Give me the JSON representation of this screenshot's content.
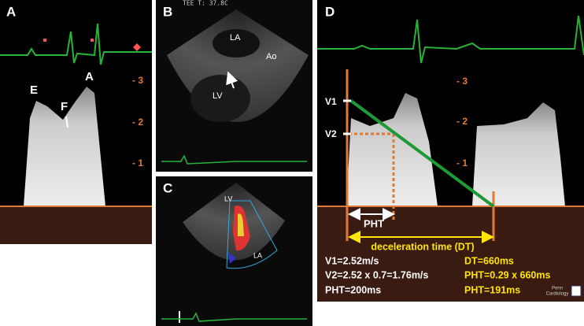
{
  "panel_a": {
    "label": "A",
    "waves": [
      "E",
      "F",
      "A"
    ],
    "scale": [
      "- 3",
      "- 2",
      "- 1"
    ]
  },
  "panel_b": {
    "label": "B",
    "header": "TEE T: 37.8C",
    "structures": [
      "LA",
      "Ao",
      "LV"
    ]
  },
  "panel_c": {
    "label": "C",
    "structures": [
      "LV",
      "LA"
    ]
  },
  "panel_d": {
    "label": "D",
    "velocities": [
      "V1",
      "V2"
    ],
    "scale": [
      "- 3",
      "- 2",
      "- 1"
    ],
    "pht_label": "PHT",
    "dt_label": "deceleration time (DT)",
    "calc_left": [
      "V1=2.52m/s",
      "V2=2.52 x 0.7=1.76m/s",
      "PHT=200ms"
    ],
    "calc_right": [
      "DT=660ms",
      "PHT=0.29 x 660ms",
      "PHT=191ms"
    ],
    "logo": [
      "Penn",
      "Cardiology"
    ]
  }
}
